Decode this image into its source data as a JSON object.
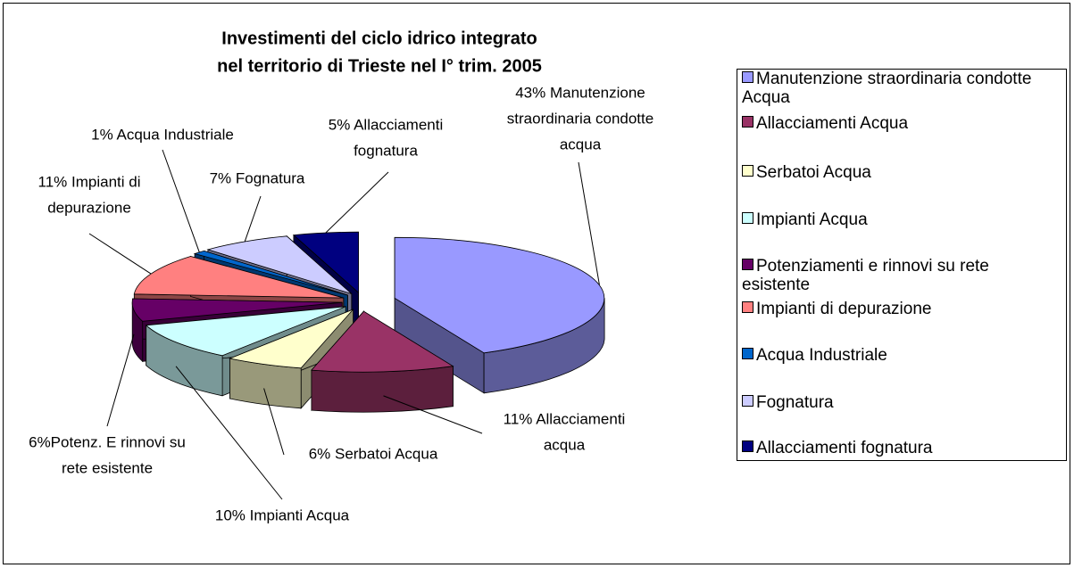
{
  "chart_data": {
    "type": "pie3d",
    "title": [
      "Investimenti del ciclo idrico integrato",
      "nel territorio di Trieste nel I° trim. 2005"
    ],
    "categories": [
      "Manutenzione straordinaria condotte Acqua",
      "Allacciamenti Acqua",
      "Serbatoi Acqua",
      "Impianti Acqua",
      "Potenziamenti e rinnovi su rete esistente",
      "Impianti di depurazione",
      "Acqua Industriale",
      "Fognatura",
      "Allacciamenti fognatura"
    ],
    "values": [
      43,
      11,
      6,
      10,
      6,
      11,
      1,
      7,
      5
    ],
    "value_labels": [
      [
        "43% Manutenzione",
        "straordinaria condotte",
        "acqua"
      ],
      [
        "11% Allacciamenti",
        "acqua"
      ],
      [
        "6% Serbatoi Acqua"
      ],
      [
        "10% Impianti Acqua"
      ],
      [
        "6%Potenz. E rinnovi su",
        "rete esistente"
      ],
      [
        "11% Impianti di",
        "depurazione"
      ],
      [
        "1% Acqua Industriale"
      ],
      [
        "7% Fognatura"
      ],
      [
        "5% Allacciamenti",
        "fognatura"
      ]
    ],
    "colors": [
      "#9999ff",
      "#993366",
      "#ffffcc",
      "#ccffff",
      "#660066",
      "#ff8080",
      "#0066cc",
      "#ccccff",
      "#000080"
    ],
    "legend": "right"
  }
}
